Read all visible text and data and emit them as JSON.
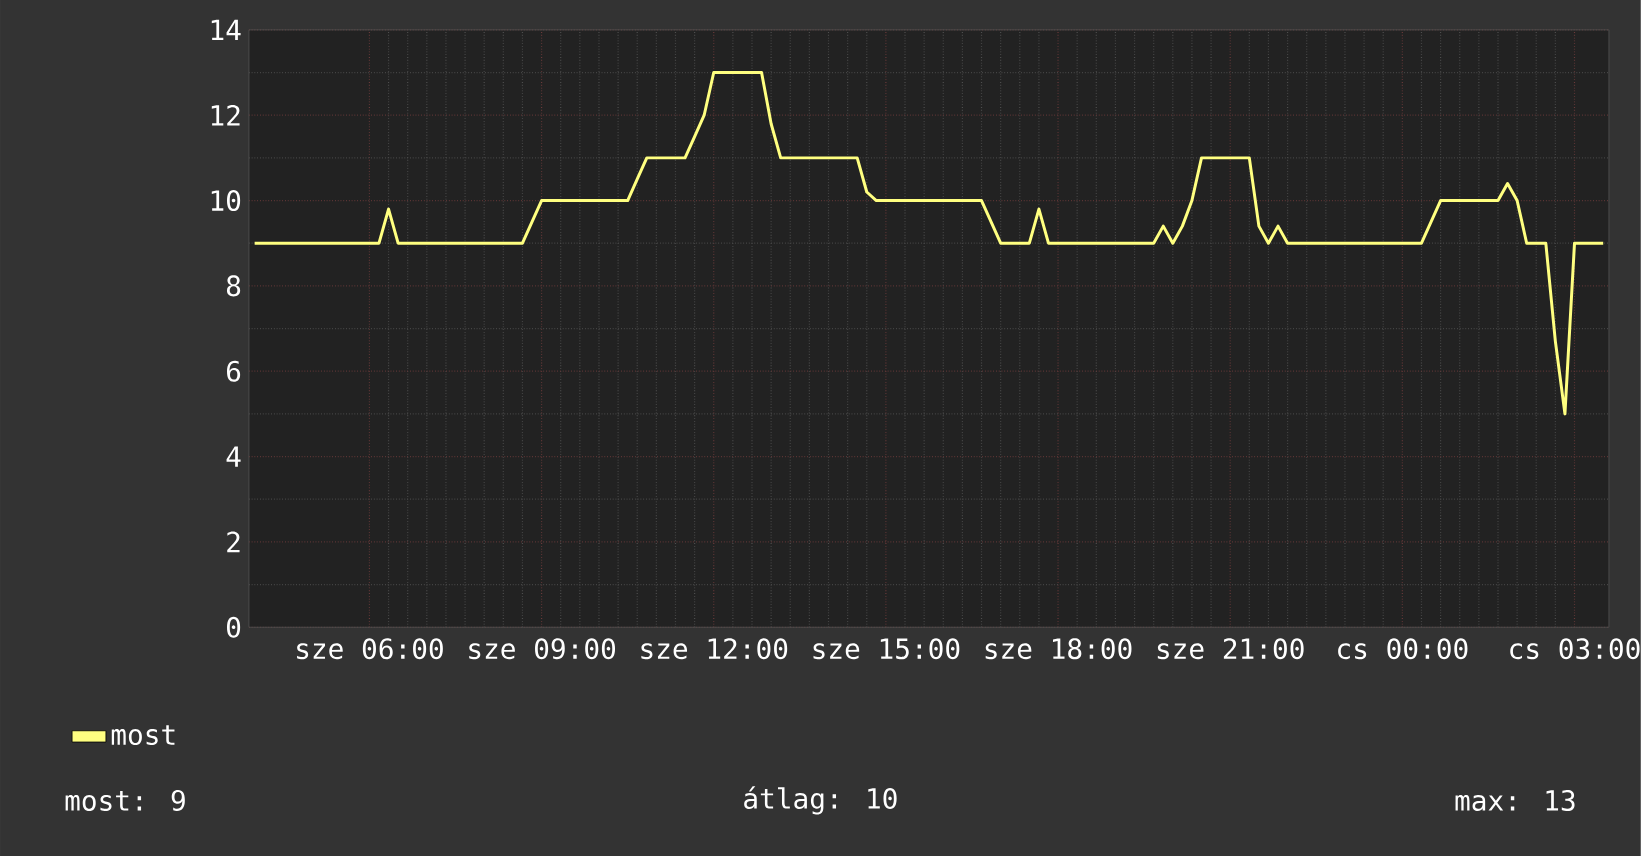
{
  "chart_data": {
    "type": "line",
    "categories": [
      null,
      null,
      null,
      null,
      null,
      null,
      null,
      null,
      null,
      null,
      null,
      null,
      "sze 06:00",
      null,
      null,
      null,
      null,
      null,
      null,
      null,
      null,
      null,
      null,
      null,
      null,
      null,
      null,
      null,
      null,
      null,
      "sze 09:00",
      null,
      null,
      null,
      null,
      null,
      null,
      null,
      null,
      null,
      null,
      null,
      null,
      null,
      null,
      null,
      null,
      null,
      "sze 12:00",
      null,
      null,
      null,
      null,
      null,
      null,
      null,
      null,
      null,
      null,
      null,
      null,
      null,
      null,
      null,
      null,
      null,
      "sze 15:00",
      null,
      null,
      null,
      null,
      null,
      null,
      null,
      null,
      null,
      null,
      null,
      null,
      null,
      null,
      null,
      null,
      null,
      "sze 18:00",
      null,
      null,
      null,
      null,
      null,
      null,
      null,
      null,
      null,
      null,
      null,
      null,
      null,
      null,
      null,
      null,
      null,
      "sze 21:00",
      null,
      null,
      null,
      null,
      null,
      null,
      null,
      null,
      null,
      null,
      null,
      null,
      null,
      null,
      null,
      null,
      null,
      "cs 00:00",
      null,
      null,
      null,
      null,
      null,
      null,
      null,
      null,
      null,
      null,
      null,
      null,
      null,
      null,
      null,
      null,
      null,
      "cs 03:00",
      null,
      null,
      null
    ],
    "series": [
      {
        "name": "most",
        "color": "#ffff80",
        "values": [
          9,
          9,
          9,
          9,
          9,
          9,
          9,
          9,
          9,
          9,
          9,
          9,
          9,
          9,
          9.8,
          9,
          9,
          9,
          9,
          9,
          9,
          9,
          9,
          9,
          9,
          9,
          9,
          9,
          9,
          9.5,
          10,
          10,
          10,
          10,
          10,
          10,
          10,
          10,
          10,
          10,
          10.5,
          11,
          11,
          11,
          11,
          11,
          11.5,
          12,
          13,
          13,
          13,
          13,
          13,
          13,
          11.8,
          11,
          11,
          11,
          11,
          11,
          11,
          11,
          11,
          11,
          10.2,
          10,
          10,
          10,
          10,
          10,
          10,
          10,
          10,
          10,
          10,
          10,
          10,
          9.5,
          9,
          9,
          9,
          9,
          9.8,
          9,
          9,
          9,
          9,
          9,
          9,
          9,
          9,
          9,
          9,
          9,
          9,
          9.4,
          9,
          9.4,
          10,
          11,
          11,
          11,
          11,
          11,
          11,
          9.4,
          9,
          9.4,
          9,
          9,
          9,
          9,
          9,
          9,
          9,
          9,
          9,
          9,
          9,
          9,
          9,
          9,
          9,
          9.5,
          10,
          10,
          10,
          10,
          10,
          10,
          10,
          10.4,
          10,
          9,
          9,
          9,
          6.7,
          5,
          9,
          9,
          9,
          9
        ]
      }
    ],
    "ylim": [
      0,
      14
    ],
    "yticks": [
      0,
      2,
      4,
      6,
      8,
      10,
      12,
      14
    ],
    "grid": true,
    "legend": "bottom left",
    "marker": "none",
    "line_style": "solid",
    "annotations": [
      "most: 9",
      "átlag: 10",
      "max: 13"
    ]
  }
}
